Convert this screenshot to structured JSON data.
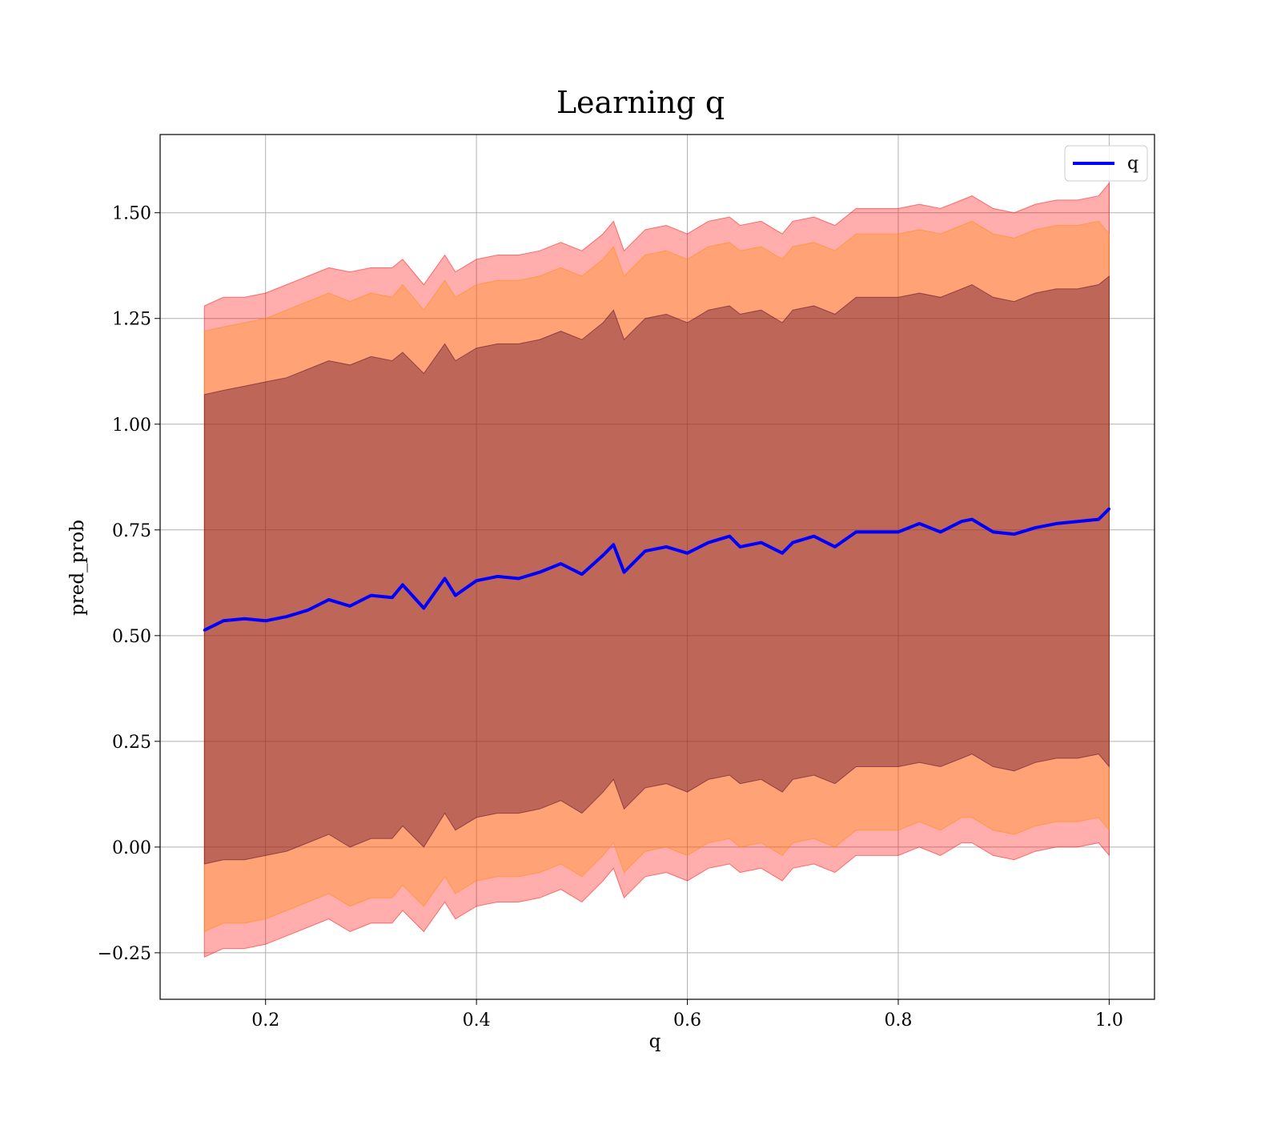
{
  "chart_data": {
    "type": "area",
    "title": "Learning q",
    "xlabel": "q",
    "ylabel": "pred_prob",
    "xlim": [
      0.1,
      1.043
    ],
    "ylim": [
      -0.36,
      1.685
    ],
    "xticks": [
      0.2,
      0.4,
      0.6,
      0.8,
      1.0
    ],
    "xtick_labels": [
      "0.2",
      "0.4",
      "0.6",
      "0.8",
      "1.0"
    ],
    "yticks": [
      -0.25,
      0.0,
      0.25,
      0.5,
      0.75,
      1.0,
      1.25,
      1.5
    ],
    "ytick_labels": [
      "−0.25",
      "0.00",
      "0.25",
      "0.50",
      "0.75",
      "1.00",
      "1.25",
      "1.50"
    ],
    "grid": true,
    "legend": {
      "placement": "top-right",
      "entries": [
        "q"
      ]
    },
    "x": [
      0.142,
      0.16,
      0.18,
      0.2,
      0.22,
      0.24,
      0.26,
      0.28,
      0.3,
      0.32,
      0.33,
      0.35,
      0.37,
      0.38,
      0.4,
      0.42,
      0.44,
      0.46,
      0.48,
      0.5,
      0.52,
      0.53,
      0.54,
      0.56,
      0.58,
      0.6,
      0.62,
      0.64,
      0.65,
      0.67,
      0.69,
      0.7,
      0.72,
      0.74,
      0.76,
      0.78,
      0.8,
      0.82,
      0.84,
      0.86,
      0.87,
      0.89,
      0.91,
      0.93,
      0.95,
      0.97,
      0.99,
      1.0
    ],
    "series": [
      {
        "name": "q",
        "color": "#0000ff",
        "values": [
          0.513,
          0.535,
          0.54,
          0.535,
          0.545,
          0.56,
          0.585,
          0.57,
          0.595,
          0.59,
          0.62,
          0.565,
          0.635,
          0.595,
          0.63,
          0.64,
          0.635,
          0.65,
          0.67,
          0.645,
          0.69,
          0.715,
          0.65,
          0.7,
          0.71,
          0.695,
          0.72,
          0.735,
          0.71,
          0.72,
          0.695,
          0.72,
          0.735,
          0.71,
          0.745,
          0.745,
          0.745,
          0.765,
          0.745,
          0.77,
          0.775,
          0.745,
          0.74,
          0.755,
          0.765,
          0.77,
          0.775,
          0.8
        ]
      }
    ],
    "bands": [
      {
        "color": "#ff0000",
        "opacity": 0.32,
        "upper": [
          1.28,
          1.3,
          1.3,
          1.31,
          1.33,
          1.35,
          1.37,
          1.36,
          1.37,
          1.37,
          1.39,
          1.33,
          1.4,
          1.36,
          1.39,
          1.4,
          1.4,
          1.41,
          1.43,
          1.41,
          1.45,
          1.48,
          1.41,
          1.46,
          1.47,
          1.45,
          1.48,
          1.49,
          1.47,
          1.48,
          1.45,
          1.48,
          1.49,
          1.47,
          1.51,
          1.51,
          1.51,
          1.52,
          1.51,
          1.53,
          1.54,
          1.51,
          1.5,
          1.52,
          1.53,
          1.53,
          1.54,
          1.57
        ],
        "lower": [
          -0.26,
          -0.24,
          -0.24,
          -0.23,
          -0.21,
          -0.19,
          -0.17,
          -0.2,
          -0.18,
          -0.18,
          -0.15,
          -0.2,
          -0.13,
          -0.17,
          -0.14,
          -0.13,
          -0.13,
          -0.12,
          -0.1,
          -0.13,
          -0.08,
          -0.05,
          -0.12,
          -0.07,
          -0.06,
          -0.08,
          -0.05,
          -0.04,
          -0.06,
          -0.05,
          -0.08,
          -0.05,
          -0.04,
          -0.06,
          -0.02,
          -0.02,
          -0.02,
          0.0,
          -0.02,
          0.01,
          0.01,
          -0.02,
          -0.03,
          -0.01,
          0.0,
          0.0,
          0.01,
          -0.02
        ]
      },
      {
        "color": "#ff8c00",
        "opacity": 0.32,
        "upper": [
          1.22,
          1.23,
          1.24,
          1.25,
          1.27,
          1.29,
          1.31,
          1.29,
          1.31,
          1.3,
          1.33,
          1.27,
          1.34,
          1.3,
          1.33,
          1.34,
          1.34,
          1.35,
          1.37,
          1.35,
          1.39,
          1.42,
          1.35,
          1.4,
          1.41,
          1.39,
          1.42,
          1.43,
          1.41,
          1.42,
          1.39,
          1.42,
          1.43,
          1.41,
          1.45,
          1.45,
          1.45,
          1.46,
          1.45,
          1.47,
          1.48,
          1.45,
          1.44,
          1.46,
          1.47,
          1.47,
          1.48,
          1.45
        ],
        "lower": [
          -0.2,
          -0.18,
          -0.18,
          -0.17,
          -0.15,
          -0.13,
          -0.11,
          -0.14,
          -0.12,
          -0.12,
          -0.09,
          -0.14,
          -0.07,
          -0.11,
          -0.08,
          -0.07,
          -0.07,
          -0.06,
          -0.04,
          -0.07,
          -0.02,
          0.01,
          -0.06,
          -0.01,
          0.0,
          -0.02,
          0.01,
          0.02,
          0.0,
          0.01,
          -0.02,
          0.01,
          0.02,
          0.0,
          0.04,
          0.04,
          0.04,
          0.06,
          0.04,
          0.07,
          0.07,
          0.04,
          0.03,
          0.05,
          0.06,
          0.06,
          0.07,
          0.04
        ]
      },
      {
        "color": "#4b0026",
        "opacity": 0.36,
        "upper": [
          1.07,
          1.08,
          1.09,
          1.1,
          1.11,
          1.13,
          1.15,
          1.14,
          1.16,
          1.15,
          1.17,
          1.12,
          1.19,
          1.15,
          1.18,
          1.19,
          1.19,
          1.2,
          1.22,
          1.2,
          1.24,
          1.27,
          1.2,
          1.25,
          1.26,
          1.24,
          1.27,
          1.28,
          1.26,
          1.27,
          1.24,
          1.27,
          1.28,
          1.26,
          1.3,
          1.3,
          1.3,
          1.31,
          1.3,
          1.32,
          1.33,
          1.3,
          1.29,
          1.31,
          1.32,
          1.32,
          1.33,
          1.35
        ],
        "lower": [
          -0.04,
          -0.03,
          -0.03,
          -0.02,
          -0.01,
          0.01,
          0.03,
          0.0,
          0.02,
          0.02,
          0.05,
          0.0,
          0.08,
          0.04,
          0.07,
          0.08,
          0.08,
          0.09,
          0.11,
          0.08,
          0.13,
          0.16,
          0.09,
          0.14,
          0.15,
          0.13,
          0.16,
          0.17,
          0.15,
          0.16,
          0.13,
          0.16,
          0.17,
          0.15,
          0.19,
          0.19,
          0.19,
          0.2,
          0.19,
          0.21,
          0.22,
          0.19,
          0.18,
          0.2,
          0.21,
          0.21,
          0.22,
          0.19
        ]
      }
    ]
  }
}
